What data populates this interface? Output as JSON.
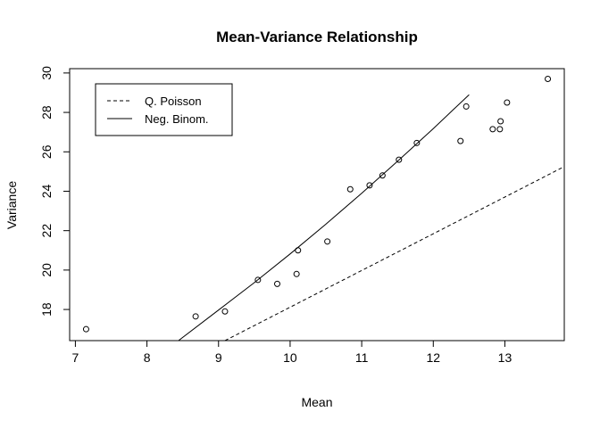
{
  "chart_data": {
    "type": "scatter",
    "title": "Mean-Variance Relationship",
    "xlabel": "Mean",
    "ylabel": "Variance",
    "xlim": [
      6.92,
      13.83
    ],
    "ylim": [
      16.42,
      30.22
    ],
    "xticks": [
      7,
      8,
      9,
      10,
      11,
      12,
      13
    ],
    "yticks": [
      18,
      20,
      22,
      24,
      26,
      28,
      30
    ],
    "grid": false,
    "legend": {
      "position": "top-left",
      "entries": [
        {
          "label": "Q. Poisson",
          "linestyle": "dashed"
        },
        {
          "label": "Neg. Binom.",
          "linestyle": "solid"
        }
      ]
    },
    "points": [
      {
        "x": 7.15,
        "y": 17.0
      },
      {
        "x": 8.68,
        "y": 17.65
      },
      {
        "x": 9.09,
        "y": 17.9
      },
      {
        "x": 9.55,
        "y": 19.5
      },
      {
        "x": 9.82,
        "y": 19.3
      },
      {
        "x": 10.09,
        "y": 19.8
      },
      {
        "x": 10.11,
        "y": 21.0
      },
      {
        "x": 10.52,
        "y": 21.45
      },
      {
        "x": 10.84,
        "y": 24.1
      },
      {
        "x": 11.11,
        "y": 24.3
      },
      {
        "x": 11.29,
        "y": 24.8
      },
      {
        "x": 11.52,
        "y": 25.6
      },
      {
        "x": 11.77,
        "y": 26.45
      },
      {
        "x": 12.38,
        "y": 26.55
      },
      {
        "x": 12.46,
        "y": 28.3
      },
      {
        "x": 12.83,
        "y": 27.15
      },
      {
        "x": 12.93,
        "y": 27.15
      },
      {
        "x": 12.94,
        "y": 27.55
      },
      {
        "x": 13.03,
        "y": 28.5
      },
      {
        "x": 13.6,
        "y": 29.7
      }
    ],
    "lines": [
      {
        "name": "Q. Poisson",
        "linestyle": "dashed",
        "x": [
          9.09,
          13.83
        ],
        "y": [
          16.42,
          25.25
        ]
      },
      {
        "name": "Neg. Binom.",
        "linestyle": "solid",
        "x": [
          8.44,
          9.0,
          9.5,
          10.0,
          10.5,
          11.0,
          11.5,
          12.0,
          12.5
        ],
        "y": [
          16.42,
          17.97,
          19.36,
          20.82,
          22.33,
          23.9,
          25.52,
          27.18,
          28.9
        ]
      }
    ]
  }
}
